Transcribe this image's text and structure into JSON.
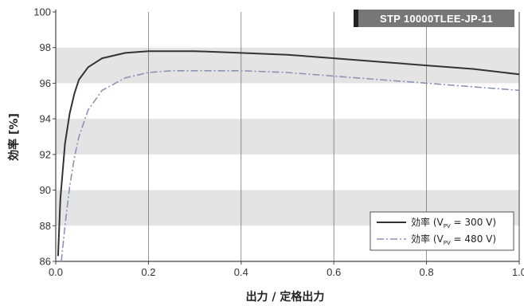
{
  "chart_data": {
    "type": "line",
    "title": "",
    "model_label": "STP 10000TLEE-JP-11",
    "xlabel": "出力 / 定格出力",
    "ylabel": "効率 [%]",
    "xlim": [
      0.0,
      1.0
    ],
    "ylim": [
      86,
      100
    ],
    "x_ticks": [
      "0.0",
      "0.2",
      "0.4",
      "0.6",
      "0.8",
      "1.0"
    ],
    "y_ticks": [
      "86",
      "88",
      "90",
      "92",
      "94",
      "96",
      "98",
      "100"
    ],
    "grid": true,
    "legend_position": "bottom-right",
    "series": [
      {
        "name": "効率 (Vpv = 300 V)",
        "legend_main": "効率 (V",
        "legend_sub": "PV",
        "legend_tail": " = 300 V)",
        "style": "solid",
        "color": "#333333",
        "x": [
          0.005,
          0.01,
          0.02,
          0.03,
          0.04,
          0.05,
          0.07,
          0.1,
          0.15,
          0.2,
          0.25,
          0.3,
          0.4,
          0.5,
          0.6,
          0.7,
          0.8,
          0.9,
          1.0
        ],
        "y": [
          86.3,
          89.5,
          92.6,
          94.3,
          95.4,
          96.2,
          96.9,
          97.4,
          97.7,
          97.8,
          97.8,
          97.8,
          97.7,
          97.6,
          97.4,
          97.2,
          97.0,
          96.8,
          96.5
        ]
      },
      {
        "name": "効率 (Vpv = 480 V)",
        "legend_main": "効率 (V",
        "legend_sub": "PV",
        "legend_tail": " = 480 V)",
        "style": "dashdot",
        "color": "#8a93b5",
        "x": [
          0.012,
          0.02,
          0.03,
          0.04,
          0.05,
          0.07,
          0.1,
          0.15,
          0.2,
          0.25,
          0.3,
          0.4,
          0.5,
          0.6,
          0.7,
          0.8,
          0.9,
          1.0
        ],
        "y": [
          86.0,
          88.0,
          90.2,
          91.8,
          93.0,
          94.5,
          95.6,
          96.3,
          96.6,
          96.7,
          96.7,
          96.7,
          96.6,
          96.4,
          96.2,
          96.0,
          95.8,
          95.6
        ]
      }
    ]
  },
  "colors": {
    "band": "#e4e4e4",
    "grid": "#666666",
    "axis": "#444444",
    "model_box": "#777777",
    "model_accent": "#222222"
  }
}
